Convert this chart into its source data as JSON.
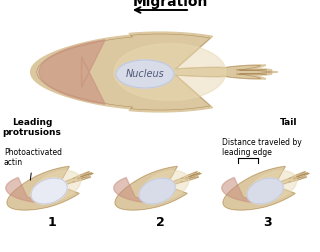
{
  "bg_color": "#ffffff",
  "cell_body_color": "#dcc8a0",
  "cell_inner_color": "#e8d8b0",
  "cell_leading_pink": "#c89080",
  "nucleus_color": "#c0c8dc",
  "nucleus_highlight": "#d8dce8",
  "actin_bright": "#e8eaf4",
  "title": "Migration",
  "label_leading": "Leading\nprotrusions",
  "label_tail": "Tail",
  "label_photoact": "Photoactivated\nactin",
  "label_distance": "Distance traveled by\nleading edge",
  "sub_labels": [
    "1",
    "2",
    "3"
  ],
  "font_size_title": 10,
  "font_size_label": 6.5,
  "font_size_sub": 9
}
